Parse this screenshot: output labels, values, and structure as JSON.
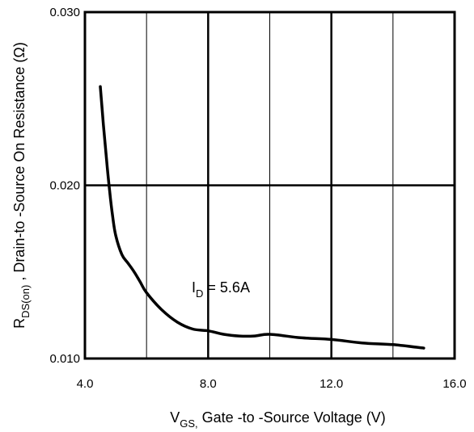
{
  "chart_data": {
    "type": "line",
    "title": "",
    "xlabel": {
      "main": "V",
      "sub": "GS,",
      "rest": " Gate -to -Source Voltage  (V)"
    },
    "ylabel": {
      "main": "R",
      "sub": "DS(on)",
      "rest": " ,  Drain-to -Source On Resistance (Ω)"
    },
    "xlim": [
      4.0,
      16.0
    ],
    "ylim": [
      0.01,
      0.03
    ],
    "x_ticks": [
      "4.0",
      "8.0",
      "12.0",
      "16.0"
    ],
    "y_ticks": [
      "0.010",
      "0.020",
      "0.030"
    ],
    "grid": true,
    "annotation": {
      "main": "I",
      "sub": "D",
      "rest": " = 5.6A"
    },
    "series": [
      {
        "x": [
          4.5,
          4.6,
          4.7,
          4.8,
          4.9,
          5.0,
          5.2,
          5.4,
          5.6,
          5.8,
          6.0,
          6.5,
          7.0,
          7.5,
          8.0,
          8.5,
          9.0,
          9.5,
          10.0,
          11.0,
          12.0,
          13.0,
          14.0,
          15.0
        ],
        "y": [
          0.0257,
          0.0235,
          0.0215,
          0.0197,
          0.0182,
          0.0171,
          0.016,
          0.0155,
          0.015,
          0.0144,
          0.0138,
          0.0128,
          0.0121,
          0.0117,
          0.0116,
          0.0114,
          0.0113,
          0.0113,
          0.0114,
          0.0112,
          0.0111,
          0.0109,
          0.0108,
          0.0106
        ]
      }
    ]
  }
}
